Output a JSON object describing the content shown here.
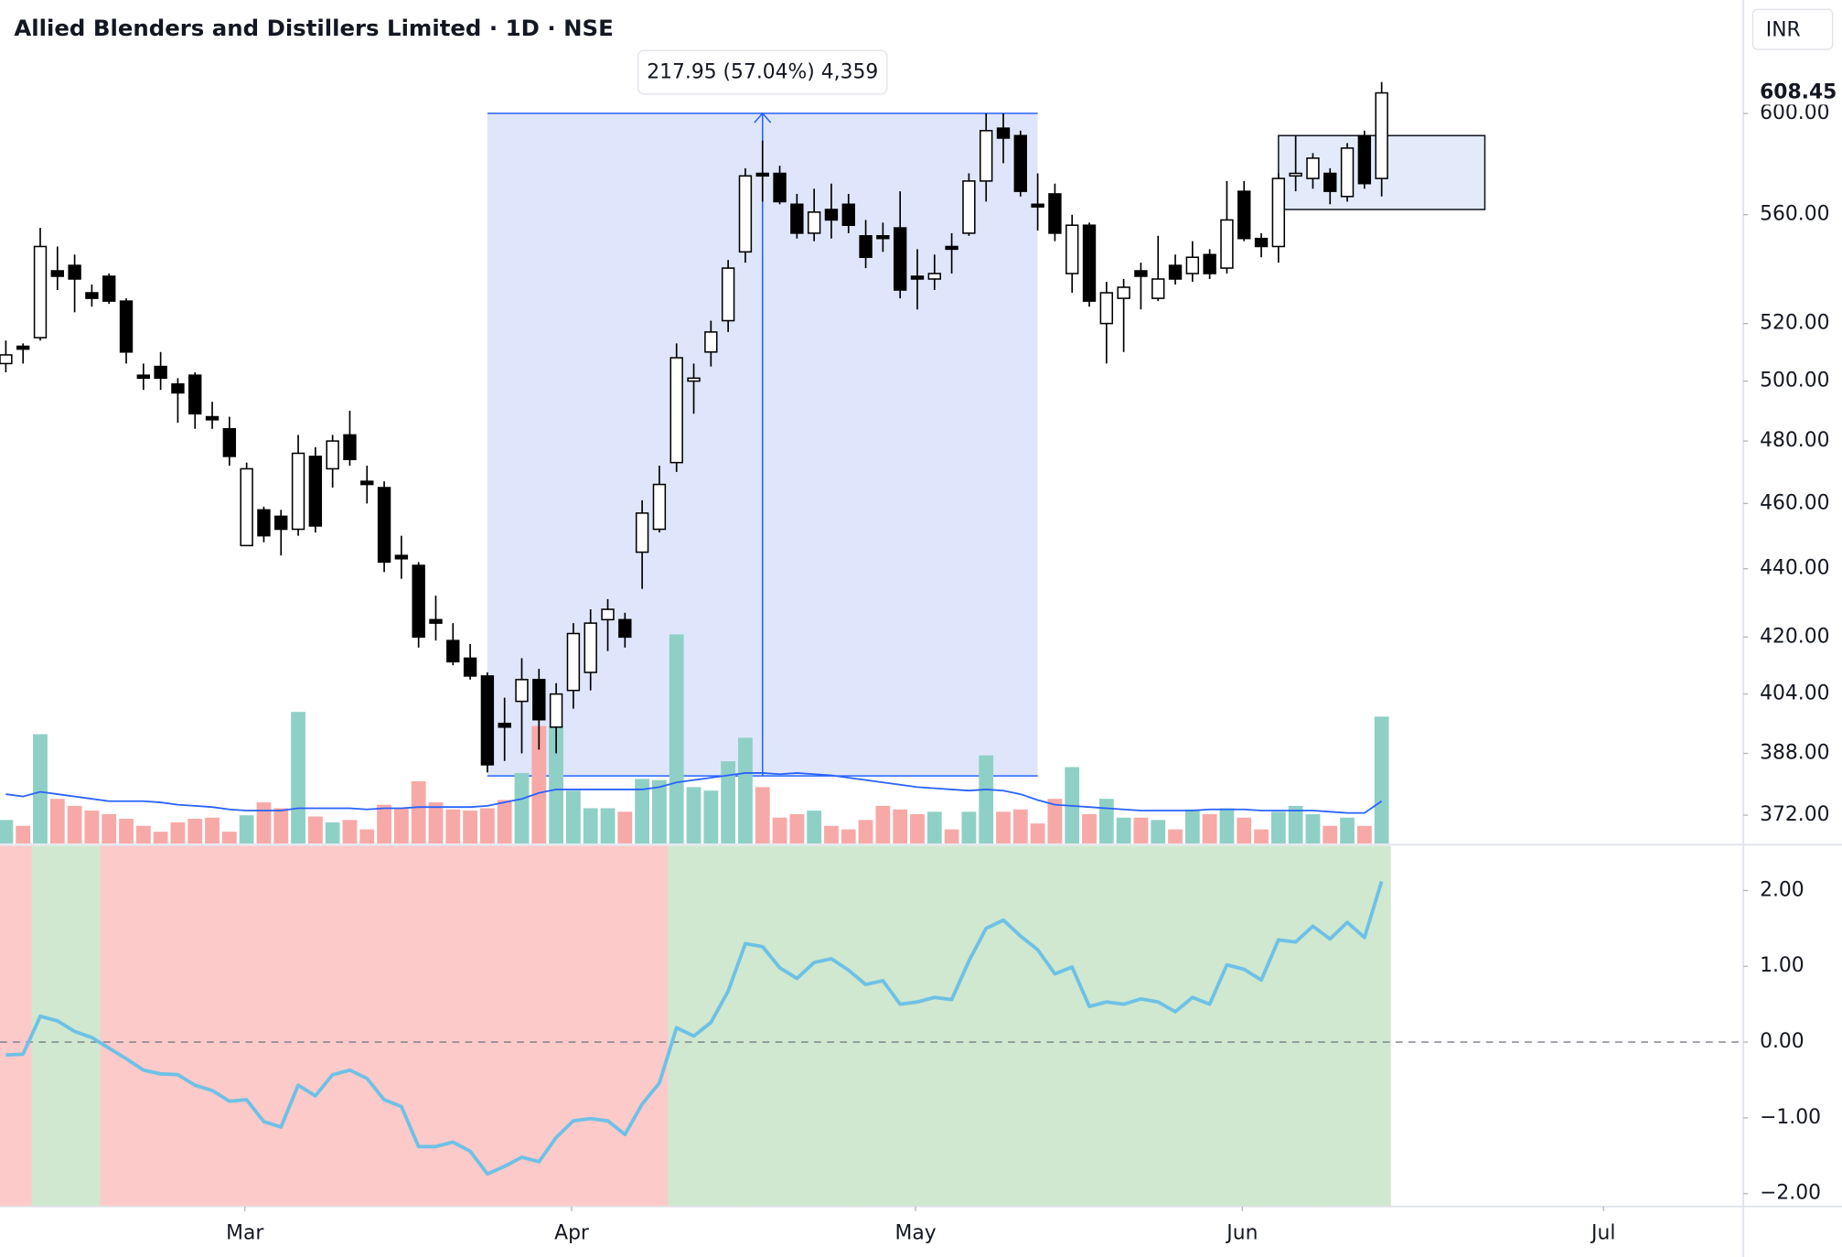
{
  "chart_data": {
    "type": "candlestick",
    "title": "Allied Blenders and Distillers Limited · 1D · NSE",
    "currency": "INR",
    "log_scale": true,
    "xlim": [
      -0.34,
      101.03
    ],
    "xticks": [
      {
        "value": 13.9,
        "label": "Mar"
      },
      {
        "value": 32.9,
        "label": "Apr"
      },
      {
        "value": 52.9,
        "label": "May"
      },
      {
        "value": 71.9,
        "label": "Jun"
      },
      {
        "value": 92.9,
        "label": "Jul"
      }
    ],
    "ylim": [
      364.9,
      648.2
    ],
    "yticks": [
      {
        "value": 372,
        "label": "372.00"
      },
      {
        "value": 388,
        "label": "388.00"
      },
      {
        "value": 404,
        "label": "404.00"
      },
      {
        "value": 420,
        "label": "420.00"
      },
      {
        "value": 440,
        "label": "440.00"
      },
      {
        "value": 460,
        "label": "460.00"
      },
      {
        "value": 480,
        "label": "480.00"
      },
      {
        "value": 500,
        "label": "500.00"
      },
      {
        "value": 520,
        "label": "520.00"
      },
      {
        "value": 560,
        "label": "560.00"
      },
      {
        "value": 600,
        "label": "600.00"
      }
    ],
    "up_color": "#ffffff",
    "down_color": "#000000",
    "open": [
      506,
      512,
      515,
      539,
      541,
      531,
      537,
      528,
      502,
      505,
      499,
      502,
      488,
      484,
      447,
      458,
      456,
      452,
      475,
      471,
      482,
      467,
      465,
      444,
      441,
      425,
      419,
      414,
      409,
      396,
      402,
      408,
      395,
      405,
      410,
      425,
      425,
      445,
      452,
      473,
      500,
      510,
      521,
      546,
      576,
      576,
      564,
      553,
      562,
      564,
      552,
      552,
      555,
      537,
      536,
      548,
      553,
      573,
      594,
      591,
      564,
      568,
      538,
      556,
      520,
      529,
      539,
      529,
      541,
      538,
      545,
      540,
      569,
      551,
      548,
      575,
      574,
      576,
      567,
      591,
      574
    ],
    "high": [
      514,
      513,
      555,
      548,
      545,
      534,
      538,
      529,
      506,
      510,
      501,
      503,
      493,
      488,
      473,
      459,
      458,
      482,
      478,
      482,
      490,
      472,
      467,
      450,
      442,
      432,
      424,
      418,
      410,
      403,
      414,
      411,
      407,
      424,
      428,
      431,
      427,
      461,
      472,
      513,
      506,
      521,
      543,
      578,
      589,
      579,
      568,
      570,
      572,
      568,
      558,
      557,
      569,
      547,
      545,
      553,
      576,
      600,
      600,
      593,
      576,
      572,
      560,
      557,
      535,
      536,
      542,
      552,
      545,
      550,
      547,
      573,
      573,
      553,
      576,
      591,
      584,
      578,
      588,
      593,
      613
    ],
    "low": [
      503,
      506,
      514,
      532,
      524,
      526,
      527,
      506,
      497,
      497,
      486,
      484,
      484,
      472,
      447,
      448,
      444,
      450,
      451,
      465,
      472,
      460,
      439,
      437,
      417,
      419,
      412,
      408,
      383,
      386,
      388,
      389,
      388,
      400,
      405,
      416,
      417,
      434,
      451,
      470,
      489,
      505,
      517,
      542,
      565,
      564,
      551,
      550,
      551,
      553,
      540,
      546,
      529,
      525,
      532,
      538,
      552,
      565,
      580,
      567,
      554,
      550,
      531,
      526,
      506,
      510,
      525,
      528,
      534,
      535,
      536,
      538,
      550,
      544,
      542,
      569,
      570,
      564,
      565,
      570,
      567
    ],
    "close": [
      509,
      511,
      548,
      537,
      536,
      529,
      528,
      510,
      501,
      501,
      496,
      489,
      487,
      475,
      471,
      450,
      452,
      476,
      453,
      480,
      474,
      466,
      442,
      443,
      420,
      424,
      413,
      409,
      385,
      395,
      408,
      397,
      404,
      421,
      424,
      428,
      420,
      457,
      466,
      508,
      501,
      517,
      540,
      575,
      575,
      565,
      553,
      561,
      558,
      556,
      544,
      551,
      532,
      536,
      538,
      547,
      573,
      593,
      590,
      569,
      563,
      553,
      556,
      528,
      531,
      533,
      537,
      536,
      536,
      544,
      538,
      558,
      551,
      548,
      574,
      576,
      582,
      569,
      586,
      572,
      608.45
    ],
    "volume": {
      "ylim": [
        0,
        718
      ],
      "up_color": "#8fd0c6",
      "down_color": "#f7a9a7",
      "values": [
        20,
        15,
        93,
        38,
        32,
        28,
        25,
        21,
        15,
        10,
        18,
        21,
        22,
        10,
        24,
        35,
        30,
        112,
        23,
        18,
        20,
        12,
        33,
        30,
        53,
        35,
        29,
        28,
        30,
        37,
        60,
        100,
        100,
        45,
        30,
        30,
        27,
        55,
        54,
        178,
        48,
        45,
        70,
        90,
        48,
        22,
        25,
        28,
        15,
        12,
        20,
        32,
        29,
        25,
        27,
        12,
        27,
        75,
        27,
        29,
        17,
        38,
        65,
        25,
        38,
        22,
        22,
        20,
        12,
        29,
        25,
        30,
        22,
        12,
        27,
        32,
        25,
        15,
        22,
        15,
        108
      ],
      "ma": {
        "color": "#2962ff",
        "values": [
          42,
          40,
          44,
          42,
          40,
          38,
          36,
          36,
          36,
          35,
          33,
          32,
          31,
          29,
          28,
          28,
          28,
          30,
          30,
          30,
          30,
          29,
          30,
          30,
          31,
          31,
          31,
          31,
          32,
          35,
          38,
          43,
          46,
          46,
          46,
          46,
          46,
          46,
          48,
          52,
          54,
          56,
          58,
          60,
          60,
          59,
          60,
          59,
          58,
          56,
          54,
          52,
          50,
          48,
          47,
          46,
          45,
          46,
          45,
          42,
          37,
          33,
          32,
          31,
          30,
          29,
          28,
          28,
          28,
          28,
          29,
          29,
          29,
          28,
          28,
          28,
          28,
          27,
          26,
          26,
          36
        ]
      }
    },
    "oscillator": {
      "color": "#6ec1e6",
      "positive_fill": "#cfe8cf",
      "negative_fill": "#fdcaca",
      "ylim": [
        -2.17,
        2.59
      ],
      "yticks": [
        {
          "value": 2,
          "label": "2.00"
        },
        {
          "value": 1,
          "label": "1.00"
        },
        {
          "value": 0,
          "label": "0.00"
        },
        {
          "value": -1,
          "label": "−1.00"
        },
        {
          "value": -2,
          "label": "−2.00"
        }
      ],
      "values": [
        -0.17,
        -0.16,
        0.34,
        0.28,
        0.14,
        0.06,
        -0.08,
        -0.22,
        -0.37,
        -0.42,
        -0.43,
        -0.57,
        -0.64,
        -0.78,
        -0.76,
        -1.05,
        -1.12,
        -0.57,
        -0.71,
        -0.43,
        -0.37,
        -0.48,
        -0.76,
        -0.85,
        -1.38,
        -1.38,
        -1.32,
        -1.44,
        -1.74,
        -1.64,
        -1.52,
        -1.58,
        -1.26,
        -1.04,
        -1.01,
        -1.04,
        -1.22,
        -0.82,
        -0.54,
        0.19,
        0.08,
        0.26,
        0.67,
        1.3,
        1.26,
        0.98,
        0.84,
        1.05,
        1.1,
        0.95,
        0.76,
        0.81,
        0.5,
        0.53,
        0.59,
        0.56,
        1.07,
        1.5,
        1.61,
        1.4,
        1.22,
        0.9,
        0.99,
        0.47,
        0.53,
        0.5,
        0.57,
        0.53,
        0.4,
        0.59,
        0.5,
        1.02,
        0.96,
        0.82,
        1.35,
        1.32,
        1.53,
        1.36,
        1.58,
        1.38,
        2.12
      ]
    },
    "measure": {
      "from": 382.1,
      "to": 600.05,
      "label": "217.95 (57.04%) 4,359",
      "fill": "#dfe6fb",
      "color": "#2962ff"
    },
    "box": {
      "high": 591,
      "low": 562,
      "fill": "#e3ebfa"
    }
  }
}
